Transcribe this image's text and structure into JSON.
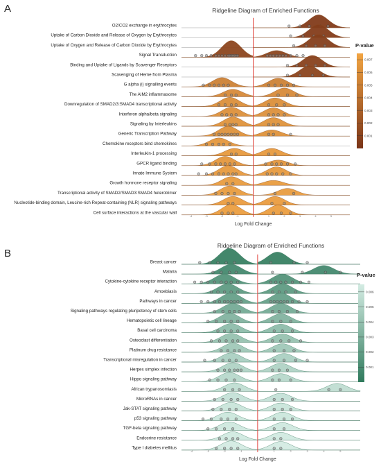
{
  "chart_data": [
    {
      "type": "ridgeline",
      "panel_label": "A",
      "title": "Ridgeline Diagram of Enriched Functions",
      "xlabel": "Log Fold Change",
      "xlim": [
        -4.6,
        6.2
      ],
      "x_ticks": [
        -4,
        -3,
        -2,
        -1,
        1,
        2,
        3,
        4,
        5
      ],
      "reference_line_x": 0,
      "colorbar": {
        "title": "P-value",
        "min": 0.0,
        "max": 0.0075,
        "ticks": [
          "0.007",
          "0.006",
          "0.005",
          "0.004",
          "0.003",
          "0.002",
          "0.001"
        ],
        "color_low": "#7a3418",
        "color_high": "#f2a543"
      },
      "rows": [
        {
          "label": "O2/CO2 exchange in erythrocytes",
          "pvalue": 0.0005,
          "neg_peak": null,
          "neg_height": 0,
          "pos_peak": 4.2,
          "pos_height": 1.05,
          "neg_points": [],
          "pos_points": [
            2.3,
            3.0,
            3.6,
            4.3,
            4.8
          ]
        },
        {
          "label": "Uptake of Carbon Dioxide and Release of Oxygen by Erythrocytes",
          "pvalue": 0.0006,
          "neg_peak": null,
          "neg_height": 0,
          "pos_peak": 4.2,
          "pos_height": 1.05,
          "neg_points": [],
          "pos_points": [
            2.4,
            3.2,
            3.9,
            4.5
          ]
        },
        {
          "label": "Uptake of Oxygen and Release of Carbon Dioxide by Erythrocytes",
          "pvalue": 0.0007,
          "neg_peak": null,
          "neg_height": 0,
          "pos_peak": 4.2,
          "pos_height": 1.05,
          "neg_points": [],
          "pos_points": [
            2.6,
            3.4,
            4.0,
            4.6
          ]
        },
        {
          "label": "Signal Transduction",
          "pvalue": 0.0012,
          "neg_peak": -1.4,
          "neg_height": 1.35,
          "pos_peak": 1.5,
          "pos_height": 0.55,
          "neg_points": [
            -3.7,
            -3.3,
            -3.0,
            -2.7,
            -2.4,
            -2.2,
            -2.0,
            -1.8,
            -1.6,
            -1.5,
            -1.4,
            -1.3,
            -1.2,
            -1.1,
            -1.0
          ],
          "pos_points": [
            0.9,
            1.1,
            1.3,
            1.5,
            1.7,
            1.9,
            2.1,
            2.4,
            2.8,
            3.2
          ]
        },
        {
          "label": "Binding and Uptake of Ligands by Scavenger Receptors",
          "pvalue": 0.0009,
          "neg_peak": null,
          "neg_height": 0,
          "pos_peak": 3.8,
          "pos_height": 0.95,
          "neg_points": [],
          "pos_points": [
            2.2,
            2.8,
            3.4,
            4.0,
            4.6
          ]
        },
        {
          "label": "Scavenging of Heme from Plasma",
          "pvalue": 0.0011,
          "neg_peak": null,
          "neg_height": 0,
          "pos_peak": 3.6,
          "pos_height": 0.9,
          "neg_points": [],
          "pos_points": [
            2.2,
            3.0,
            3.8,
            4.5
          ]
        },
        {
          "label": "G alpha (i) signalling events",
          "pvalue": 0.0052,
          "neg_peak": -2.0,
          "neg_height": 0.75,
          "pos_peak": 1.6,
          "pos_height": 0.7,
          "neg_points": [
            -3.2,
            -2.8,
            -2.5,
            -2.2,
            -1.9,
            -1.6
          ],
          "pos_points": [
            1.0,
            1.4,
            1.8,
            2.2,
            2.6
          ]
        },
        {
          "label": "The AIM2 inflammasome",
          "pvalue": 0.0058,
          "neg_peak": -1.3,
          "neg_height": 0.6,
          "pos_peak": 2.0,
          "pos_height": 0.7,
          "neg_points": [
            -1.8,
            -1.4,
            -1.1
          ],
          "pos_points": [
            1.6,
            2.2,
            2.8
          ]
        },
        {
          "label": "Downregulation of SMAD2/3:SMAD4 transcriptional activity",
          "pvalue": 0.0061,
          "neg_peak": -1.5,
          "neg_height": 0.75,
          "pos_peak": 1.4,
          "pos_height": 0.7,
          "neg_points": [
            -2.2,
            -1.8,
            -1.4,
            -1.1
          ],
          "pos_points": [
            1.0,
            1.5,
            2.0
          ]
        },
        {
          "label": "Interferon alpha/beta signaling",
          "pvalue": 0.0062,
          "neg_peak": -1.4,
          "neg_height": 0.75,
          "pos_peak": 1.3,
          "pos_height": 0.7,
          "neg_points": [
            -2.0,
            -1.7,
            -1.4,
            -1.1
          ],
          "pos_points": [
            1.0,
            1.3,
            1.6,
            2.0
          ]
        },
        {
          "label": "Signaling by Interleukins",
          "pvalue": 0.0064,
          "neg_peak": -1.3,
          "neg_height": 0.75,
          "pos_peak": 1.3,
          "pos_height": 0.7,
          "neg_points": [
            -1.8,
            -1.5,
            -1.3,
            -1.1
          ],
          "pos_points": [
            1.0,
            1.3,
            1.6
          ]
        },
        {
          "label": "Generic Transcription Pathway",
          "pvalue": 0.0063,
          "neg_peak": -1.6,
          "neg_height": 0.8,
          "pos_peak": 1.2,
          "pos_height": 0.5,
          "neg_points": [
            -2.5,
            -2.2,
            -2.0,
            -1.8,
            -1.6,
            -1.4,
            -1.2,
            -1.0
          ],
          "pos_points": [
            1.0,
            1.3,
            2.4
          ]
        },
        {
          "label": "Chemokine receptors bind chemokines",
          "pvalue": 0.0066,
          "neg_peak": -2.2,
          "neg_height": 0.65,
          "pos_peak": null,
          "pos_height": 0,
          "neg_points": [
            -3.0,
            -2.6,
            -2.2,
            -1.9,
            -1.5
          ],
          "pos_points": []
        },
        {
          "label": "Interleukin-1 processing",
          "pvalue": 0.0068,
          "neg_peak": -1.2,
          "neg_height": 0.6,
          "pos_peak": 1.2,
          "pos_height": 0.6,
          "neg_points": [
            -1.4,
            -1.1
          ],
          "pos_points": [
            1.0,
            1.4
          ]
        },
        {
          "label": "GPCR ligand binding",
          "pvalue": 0.0066,
          "neg_peak": -1.8,
          "neg_height": 0.75,
          "pos_peak": 1.6,
          "pos_height": 0.45,
          "neg_points": [
            -3.3,
            -2.8,
            -2.4,
            -2.1,
            -1.8,
            -1.5,
            -1.2
          ],
          "pos_points": [
            0.8,
            1.2,
            1.5,
            1.8,
            2.2,
            2.7
          ]
        },
        {
          "label": "Innate Immune System",
          "pvalue": 0.0068,
          "neg_peak": -1.6,
          "neg_height": 0.8,
          "pos_peak": 1.5,
          "pos_height": 0.7,
          "neg_points": [
            -3.5,
            -3.0,
            -2.6,
            -2.2,
            -1.9,
            -1.6,
            -1.3,
            -1.1
          ],
          "pos_points": [
            0.9,
            1.2,
            1.5,
            1.9,
            2.4
          ]
        },
        {
          "label": "Growth hormone receptor signaling",
          "pvalue": 0.0069,
          "neg_peak": -1.4,
          "neg_height": 0.7,
          "pos_peak": 1.3,
          "pos_height": 0.4,
          "neg_points": [
            -1.7,
            -1.3
          ],
          "pos_points": []
        },
        {
          "label": "Transcriptional activity of SMAD2/SMAD3:SMAD4 heterotrimer",
          "pvalue": 0.0069,
          "neg_peak": -1.5,
          "neg_height": 0.75,
          "pos_peak": 2.2,
          "pos_height": 0.55,
          "neg_points": [
            -2.4,
            -2.0,
            -1.6,
            -1.2
          ],
          "pos_points": [
            1.4,
            2.6
          ]
        },
        {
          "label": "Nucleotide-binding domain, Leucine-rich Repeat-containing (NLR) signaling pathways",
          "pvalue": 0.007,
          "neg_peak": -1.3,
          "neg_height": 0.7,
          "pos_peak": 1.4,
          "pos_height": 0.7,
          "neg_points": [
            -1.6,
            -1.3
          ],
          "pos_points": [
            1.2,
            2.0
          ]
        },
        {
          "label": "Cell surface interactions at the vascular wall",
          "pvalue": 0.0071,
          "neg_peak": -1.4,
          "neg_height": 0.85,
          "pos_peak": 1.6,
          "pos_height": 0.8,
          "neg_points": [
            -2.0,
            -1.6,
            -1.3
          ],
          "pos_points": [
            1.3,
            1.8,
            2.4
          ]
        }
      ]
    },
    {
      "type": "ridgeline",
      "panel_label": "B",
      "title": "Ridgeline Diagram of Enriched Functions",
      "xlabel": "Log Fold Change",
      "xlim": [
        -4.6,
        6.2
      ],
      "x_ticks": [
        -4,
        -3,
        -2,
        -1,
        1,
        2,
        3,
        4,
        5
      ],
      "reference_line_x": 0,
      "colorbar": {
        "title": "P-value",
        "min": 0.0,
        "max": 0.0065,
        "ticks": [
          "0.006",
          "0.005",
          "0.004",
          "0.003",
          "0.002",
          "0.001"
        ],
        "color_low": "#2f7a5c",
        "color_high": "#d4ece3"
      },
      "rows": [
        {
          "label": "Breast cancer",
          "pvalue": 0.0004,
          "neg_peak": -1.7,
          "neg_height": 1.3,
          "pos_peak": 1.2,
          "pos_height": 1.0,
          "neg_points": [
            -3.5,
            -2.9,
            -2.4,
            -1.9,
            -1.4
          ],
          "pos_points": [
            0.8,
            2.2,
            3.0
          ]
        },
        {
          "label": "Malaria",
          "pvalue": 0.0009,
          "neg_peak": -1.6,
          "neg_height": 0.8,
          "pos_peak": 4.0,
          "pos_height": 0.7,
          "neg_points": [
            -2.7,
            -2.2,
            -1.7,
            -1.3
          ],
          "pos_points": [
            0.9,
            2.7,
            4.1,
            5.0
          ]
        },
        {
          "label": "Cytokine-cytokine receptor interaction",
          "pvalue": 0.0015,
          "neg_peak": -2.0,
          "neg_height": 0.8,
          "pos_peak": 1.5,
          "pos_height": 0.8,
          "neg_points": [
            -3.8,
            -3.4,
            -3.0,
            -2.6,
            -2.2,
            -1.9,
            -1.6,
            -1.2
          ],
          "pos_points": [
            0.8,
            1.1,
            1.4,
            1.7,
            2.1,
            2.6,
            3.1
          ]
        },
        {
          "label": "Amoebiasis",
          "pvalue": 0.0019,
          "neg_peak": -1.8,
          "neg_height": 0.8,
          "pos_peak": 1.5,
          "pos_height": 0.8,
          "neg_points": [
            -2.8,
            -2.4,
            -2.0,
            -1.6,
            -1.2
          ],
          "pos_points": [
            0.9,
            1.3,
            1.7,
            2.3
          ]
        },
        {
          "label": "Pathways in cancer",
          "pvalue": 0.0022,
          "neg_peak": -1.6,
          "neg_height": 0.85,
          "pos_peak": 1.4,
          "pos_height": 0.85,
          "neg_points": [
            -3.4,
            -3.0,
            -2.6,
            -2.3,
            -2.0,
            -1.8,
            -1.6,
            -1.4,
            -1.2,
            -1.0
          ],
          "pos_points": [
            0.8,
            1.0,
            1.2,
            1.4,
            1.6,
            1.8,
            2.1,
            2.5,
            3.0
          ]
        },
        {
          "label": "Signaling pathways regulating pluripotency of stem cells",
          "pvalue": 0.0028,
          "neg_peak": -1.5,
          "neg_height": 0.8,
          "pos_peak": 1.4,
          "pos_height": 0.8,
          "neg_points": [
            -2.6,
            -2.1,
            -1.7,
            -1.4,
            -1.1
          ],
          "pos_points": [
            0.9,
            1.3,
            1.8,
            2.4
          ]
        },
        {
          "label": "Hematopoietic cell lineage",
          "pvalue": 0.0033,
          "neg_peak": -1.7,
          "neg_height": 0.8,
          "pos_peak": 1.4,
          "pos_height": 0.75,
          "neg_points": [
            -3.0,
            -2.5,
            -2.0,
            -1.6,
            -1.2
          ],
          "pos_points": [
            0.9,
            1.4,
            2.0
          ]
        },
        {
          "label": "Basal cell carcinoma",
          "pvalue": 0.0038,
          "neg_peak": -1.6,
          "neg_height": 0.75,
          "pos_peak": 1.4,
          "pos_height": 0.7,
          "neg_points": [
            -2.4,
            -2.0,
            -1.6,
            -1.2
          ],
          "pos_points": [
            1.0,
            1.5,
            2.1
          ]
        },
        {
          "label": "Osteoclast differentiation",
          "pvalue": 0.0041,
          "neg_peak": -1.6,
          "neg_height": 0.75,
          "pos_peak": 1.5,
          "pos_height": 0.7,
          "neg_points": [
            -2.8,
            -2.3,
            -1.9,
            -1.5,
            -1.2
          ],
          "pos_points": [
            0.9,
            1.4,
            1.9,
            2.6
          ]
        },
        {
          "label": "Platinum drug resistance",
          "pvalue": 0.0045,
          "neg_peak": -1.5,
          "neg_height": 0.75,
          "pos_peak": 1.5,
          "pos_height": 0.7,
          "neg_points": [
            -2.2,
            -1.8,
            -1.4,
            -1.1
          ],
          "pos_points": [
            1.0,
            1.6,
            2.2
          ]
        },
        {
          "label": "Transcriptional misregulation in cancer",
          "pvalue": 0.0049,
          "neg_peak": -1.6,
          "neg_height": 0.75,
          "pos_peak": 1.6,
          "pos_height": 0.7,
          "neg_points": [
            -3.2,
            -2.6,
            -2.1,
            -1.7,
            -1.3
          ],
          "pos_points": [
            1.0,
            1.6,
            2.3,
            3.0
          ]
        },
        {
          "label": "Herpes simplex infection",
          "pvalue": 0.0051,
          "neg_peak": -1.5,
          "neg_height": 0.75,
          "pos_peak": 1.4,
          "pos_height": 0.7,
          "neg_points": [
            -2.4,
            -2.0,
            -1.7,
            -1.4,
            -1.2,
            -1.0
          ],
          "pos_points": [
            0.9,
            1.3,
            1.8
          ]
        },
        {
          "label": "Hippo signaling pathway",
          "pvalue": 0.0054,
          "neg_peak": -1.7,
          "neg_height": 0.75,
          "pos_peak": 1.4,
          "pos_height": 0.65,
          "neg_points": [
            -2.9,
            -2.4,
            -1.9,
            -1.4
          ],
          "pos_points": [
            0.9,
            1.3,
            2.0
          ]
        },
        {
          "label": "African trypanosomiasis",
          "pvalue": 0.0057,
          "neg_peak": -1.4,
          "neg_height": 0.7,
          "pos_peak": 4.8,
          "pos_height": 0.65,
          "neg_points": [
            -2.0,
            -1.5,
            -1.1
          ],
          "pos_points": [
            1.1,
            4.3,
            5.0
          ]
        },
        {
          "label": "MicroRNAs in cancer",
          "pvalue": 0.0059,
          "neg_peak": -1.5,
          "neg_height": 0.7,
          "pos_peak": 1.4,
          "pos_height": 0.65,
          "neg_points": [
            -2.6,
            -2.1,
            -1.6,
            -1.2
          ],
          "pos_points": [
            1.0,
            1.5,
            2.1
          ]
        },
        {
          "label": "Jak-STAT signaling pathway",
          "pvalue": 0.0061,
          "neg_peak": -1.6,
          "neg_height": 0.7,
          "pos_peak": 1.4,
          "pos_height": 0.65,
          "neg_points": [
            -2.7,
            -2.2,
            -1.7,
            -1.3
          ],
          "pos_points": [
            1.0,
            1.5,
            2.0
          ]
        },
        {
          "label": "p53 signaling pathway",
          "pvalue": 0.0062,
          "neg_peak": -1.8,
          "neg_height": 0.7,
          "pos_peak": 1.5,
          "pos_height": 0.7,
          "neg_points": [
            -3.3,
            -2.8,
            -2.2,
            -1.8,
            -1.3
          ],
          "pos_points": [
            1.0,
            1.6,
            2.1
          ]
        },
        {
          "label": "TGF-beta signaling pathway",
          "pvalue": 0.0063,
          "neg_peak": -1.7,
          "neg_height": 0.7,
          "pos_peak": 1.5,
          "pos_height": 0.65,
          "neg_points": [
            -3.0,
            -2.5,
            -2.0,
            -1.5
          ],
          "pos_points": [
            1.0,
            1.6
          ]
        },
        {
          "label": "Endocrine resistance",
          "pvalue": 0.0064,
          "neg_peak": -1.5,
          "neg_height": 0.7,
          "pos_peak": 1.4,
          "pos_height": 0.65,
          "neg_points": [
            -2.3,
            -1.9,
            -1.5,
            -1.2
          ],
          "pos_points": [
            1.0,
            1.4
          ]
        },
        {
          "label": "Type I diabetes mellitus",
          "pvalue": 0.0065,
          "neg_peak": -1.6,
          "neg_height": 0.75,
          "pos_peak": 1.4,
          "pos_height": 0.7,
          "neg_points": [
            -2.5,
            -2.0,
            -1.6,
            -1.2
          ],
          "pos_points": [
            1.0,
            1.4
          ]
        }
      ]
    }
  ]
}
